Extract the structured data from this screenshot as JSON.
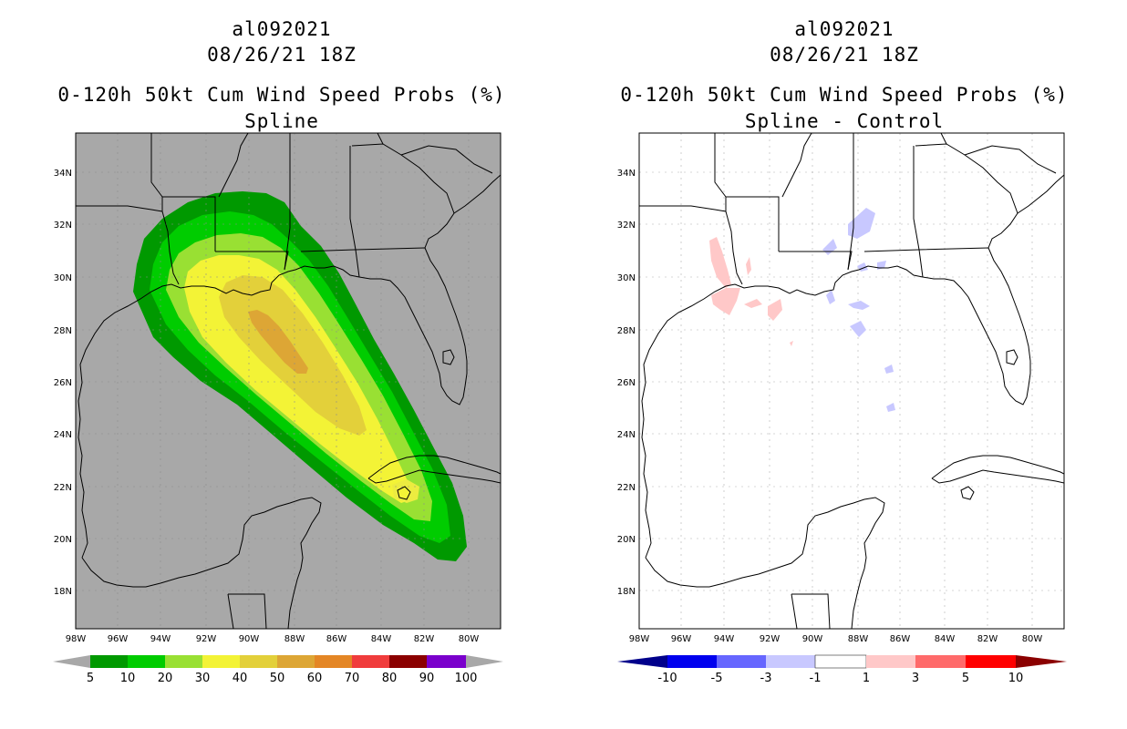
{
  "colors": {
    "land_fill": "#a8a8a8",
    "outline": "#000000",
    "prob_bins": [
      "#009900",
      "#00cc00",
      "#99e033",
      "#f3f336",
      "#e3d03a",
      "#dda635",
      "#e48625",
      "#f03c3c",
      "#8b0000",
      "#7a00cc"
    ],
    "diff_bins": [
      "#00008b",
      "#0000ee",
      "#6666ff",
      "#c8c8ff",
      "#ffffff",
      "#ffc8c8",
      "#ff6a6a",
      "#ff0000",
      "#8b0000"
    ]
  },
  "left_panel": {
    "title_lines": [
      "al092021",
      "08/26/21 18Z",
      "0-120h 50kt Cum Wind Speed Probs (%)",
      "Spline"
    ],
    "lat_labels": [
      "34N",
      "32N",
      "30N",
      "28N",
      "26N",
      "24N",
      "22N",
      "20N",
      "18N"
    ],
    "lon_labels": [
      "98W",
      "96W",
      "94W",
      "92W",
      "90W",
      "88W",
      "86W",
      "84W",
      "82W",
      "80W"
    ],
    "colorbar_labels": [
      "5",
      "10",
      "20",
      "30",
      "40",
      "50",
      "60",
      "70",
      "80",
      "90",
      "100"
    ]
  },
  "right_panel": {
    "title_lines": [
      "al092021",
      "08/26/21 18Z",
      "0-120h 50kt Cum Wind Speed Probs (%)",
      "Spline - Control"
    ],
    "lat_labels": [
      "34N",
      "32N",
      "30N",
      "28N",
      "26N",
      "24N",
      "22N",
      "20N",
      "18N"
    ],
    "lon_labels": [
      "98W",
      "96W",
      "94W",
      "92W",
      "90W",
      "88W",
      "86W",
      "84W",
      "82W",
      "80W"
    ],
    "colorbar_labels": [
      "-10",
      "-5",
      "-3",
      "-1",
      "1",
      "3",
      "5",
      "10"
    ]
  }
}
